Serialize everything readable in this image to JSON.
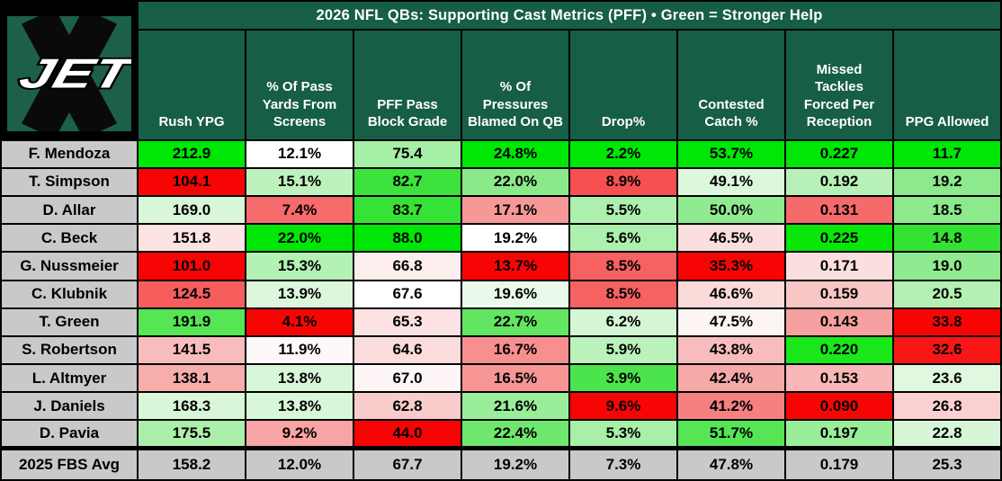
{
  "title": "2026 NFL QBs: Supporting Cast Metrics (PFF) • Green = Stronger Help",
  "logo": {
    "jet_text": "JET",
    "mark": "X",
    "green": "#1d6049"
  },
  "style_colors": {
    "header_bg": "#175e46",
    "header_text": "#ffffff",
    "name_cell_bg": "#c9c9c9",
    "avg_cell_bg": "#c9c9c9",
    "strong_help_green": "#00e606",
    "weak_help_red": "#f70505",
    "grid": "#000000"
  },
  "chart_data": {
    "type": "table",
    "title": "2026 NFL QBs: Supporting Cast Metrics (PFF)",
    "legend_note": "Green = Stronger Help",
    "column_headers": [
      "Rush YPG",
      "% Of Pass Yards From Screens",
      "PFF Pass Block Grade",
      "% Of Pressures Blamed On QB",
      "Drop%",
      "Contested Catch %",
      "Missed Tackles Forced Per Reception",
      "PPG Allowed"
    ],
    "qb_rows": [
      {
        "name": "F. Mendoza",
        "values": [
          "212.9",
          "12.1%",
          "75.4",
          "24.8%",
          "2.2%",
          "53.7%",
          "0.227",
          "11.7"
        ],
        "cell_colors": [
          "#00e606",
          "#ffffff",
          "#a6efa6",
          "#00e606",
          "#00e606",
          "#00e606",
          "#00e606",
          "#00e606"
        ]
      },
      {
        "name": "T. Simpson",
        "values": [
          "104.1",
          "15.1%",
          "82.7",
          "22.0%",
          "8.9%",
          "49.1%",
          "0.192",
          "19.2"
        ],
        "cell_colors": [
          "#f70505",
          "#bdf2bd",
          "#3ce33c",
          "#8aea8a",
          "#f65050",
          "#ddf7dd",
          "#b8f1b8",
          "#8ce98c"
        ]
      },
      {
        "name": "D. Allar",
        "values": [
          "169.0",
          "7.4%",
          "83.7",
          "17.1%",
          "5.5%",
          "50.0%",
          "0.131",
          "18.5"
        ],
        "cell_colors": [
          "#d8f6d8",
          "#f66b6b",
          "#35e235",
          "#f79898",
          "#adf0ad",
          "#90ea90",
          "#f56a6a",
          "#8ce98c"
        ]
      },
      {
        "name": "C. Beck",
        "values": [
          "151.8",
          "22.0%",
          "88.0",
          "19.2%",
          "5.6%",
          "46.5%",
          "0.225",
          "14.8"
        ],
        "cell_colors": [
          "#fce4e4",
          "#00e606",
          "#00e606",
          "#ffffff",
          "#adf0ad",
          "#fbdede",
          "#08e708",
          "#33e233"
        ]
      },
      {
        "name": "G. Nussmeier",
        "values": [
          "101.0",
          "15.3%",
          "66.8",
          "13.7%",
          "8.5%",
          "35.3%",
          "0.171",
          "19.0"
        ],
        "cell_colors": [
          "#f70505",
          "#b4f1b4",
          "#fdeeee",
          "#f70505",
          "#f66161",
          "#f70505",
          "#fbdfdf",
          "#90ea90"
        ]
      },
      {
        "name": "C. Klubnik",
        "values": [
          "124.5",
          "13.9%",
          "67.6",
          "19.6%",
          "8.5%",
          "46.6%",
          "0.159",
          "20.5"
        ],
        "cell_colors": [
          "#f65e5e",
          "#ddf7dd",
          "#ffffff",
          "#eafaea",
          "#f66161",
          "#fbdada",
          "#f9c6c6",
          "#b4f0b4"
        ]
      },
      {
        "name": "T. Green",
        "values": [
          "191.9",
          "4.1%",
          "65.3",
          "22.7%",
          "6.2%",
          "47.5%",
          "0.143",
          "33.8"
        ],
        "cell_colors": [
          "#55e555",
          "#f70505",
          "#fce2e2",
          "#62e662",
          "#d4f6d4",
          "#fdf4f4",
          "#f7a0a0",
          "#f70505"
        ]
      },
      {
        "name": "S. Robertson",
        "values": [
          "141.5",
          "11.9%",
          "64.6",
          "16.7%",
          "5.9%",
          "43.8%",
          "0.220",
          "32.6"
        ],
        "cell_colors": [
          "#f9bcbc",
          "#fef8f8",
          "#fbdcdc",
          "#f78f8f",
          "#bbf2bb",
          "#f8bcbc",
          "#1ae81a",
          "#f81616"
        ]
      },
      {
        "name": "L. Altmyer",
        "values": [
          "138.1",
          "13.8%",
          "67.0",
          "16.5%",
          "3.9%",
          "42.4%",
          "0.153",
          "23.6"
        ],
        "cell_colors": [
          "#f8adad",
          "#d8f6d8",
          "#fef6f6",
          "#f79595",
          "#4ce44c",
          "#f7a8a8",
          "#f8b8b8",
          "#e0f8e0"
        ]
      },
      {
        "name": "J. Daniels",
        "values": [
          "168.3",
          "13.8%",
          "62.8",
          "21.6%",
          "9.6%",
          "41.2%",
          "0.090",
          "26.8"
        ],
        "cell_colors": [
          "#d8f6d8",
          "#d8f6d8",
          "#f9cccc",
          "#9aee9a",
          "#f70505",
          "#f58080",
          "#f70505",
          "#fbd0d0"
        ]
      },
      {
        "name": "D. Pavia",
        "values": [
          "175.5",
          "9.2%",
          "44.0",
          "22.4%",
          "5.3%",
          "51.7%",
          "0.197",
          "22.8"
        ],
        "cell_colors": [
          "#abefab",
          "#f8a4a4",
          "#f70505",
          "#6fe76f",
          "#a8efa8",
          "#55e555",
          "#9aee9a",
          "#d7f6d7"
        ]
      }
    ],
    "avg_row": {
      "name": "2025 FBS Avg",
      "values": [
        "158.2",
        "12.0%",
        "67.7",
        "19.2%",
        "7.3%",
        "47.8%",
        "0.179",
        "25.3"
      ]
    }
  }
}
